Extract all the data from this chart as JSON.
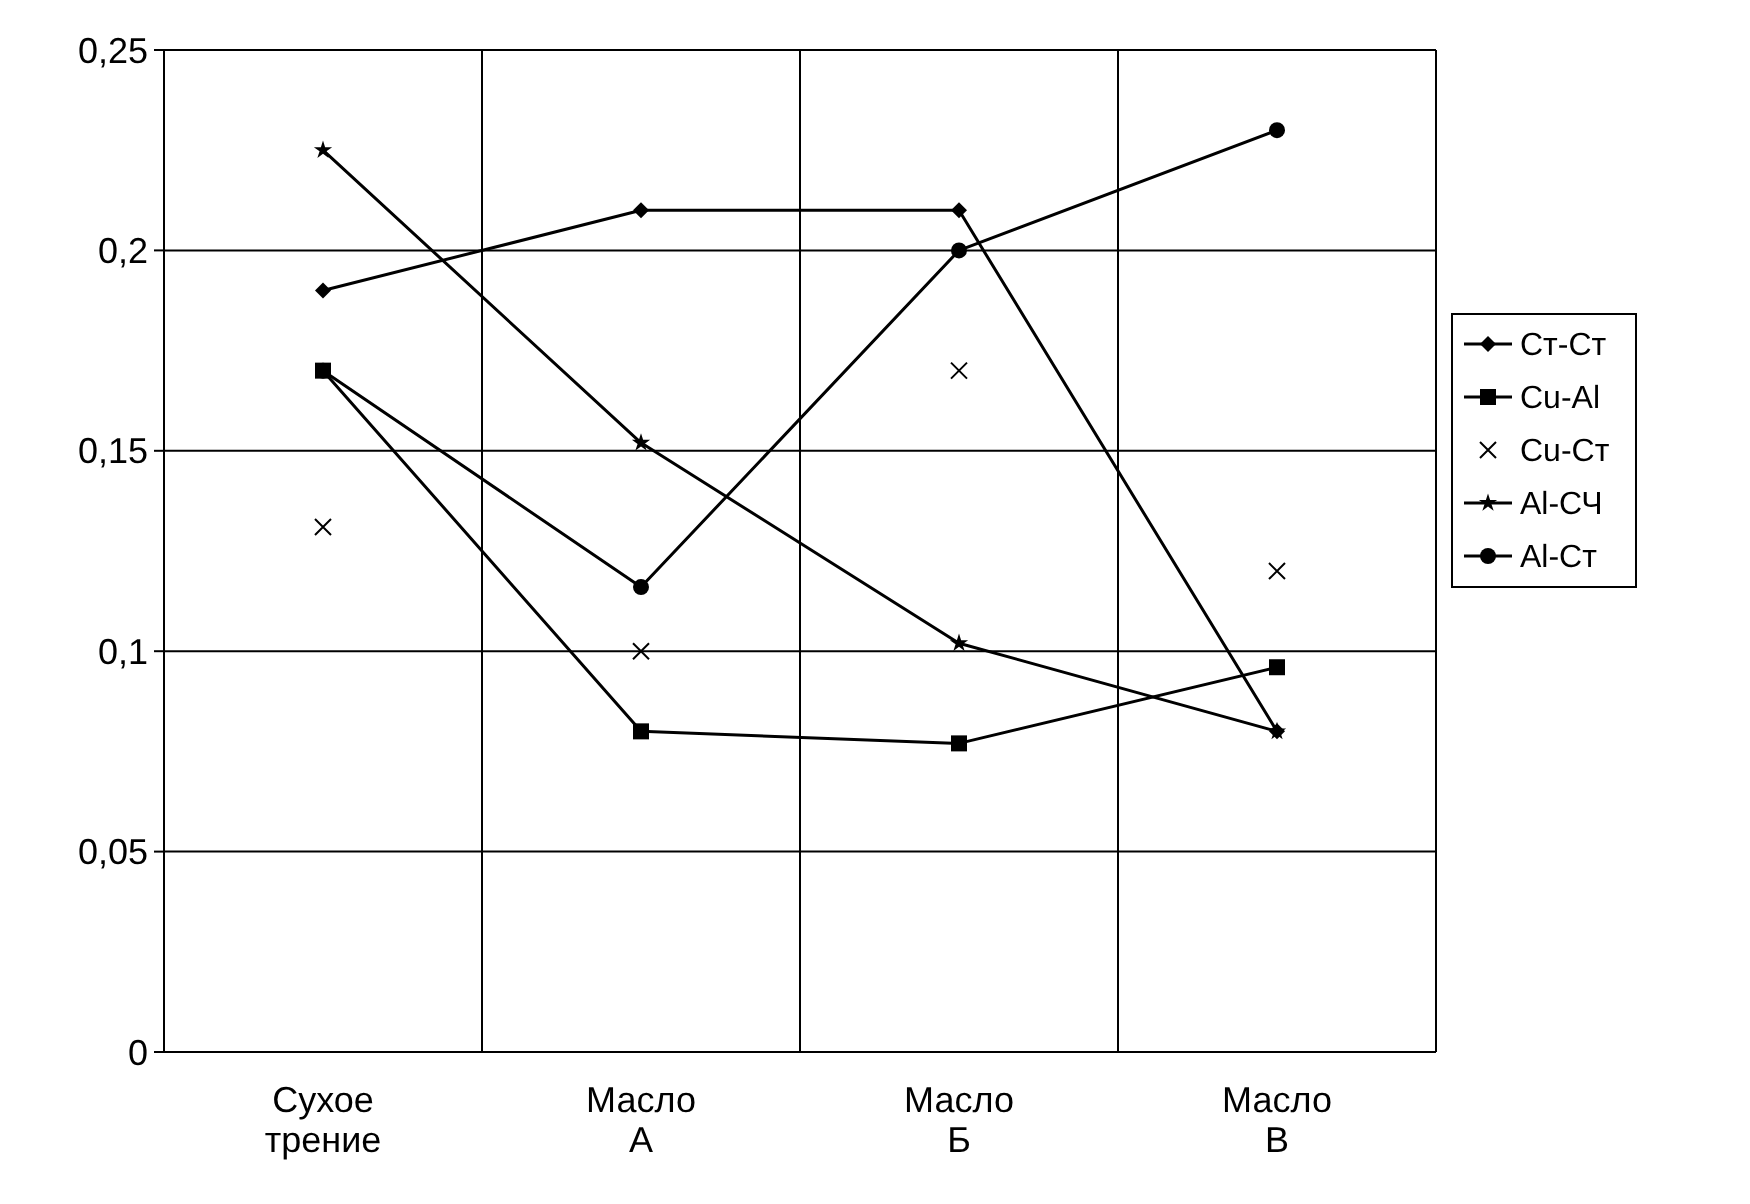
{
  "chart_data": {
    "type": "line",
    "categories": [
      "Сухое трение",
      "Масло А",
      "Масло Б",
      "Масло В"
    ],
    "ylim": [
      0,
      0.25
    ],
    "yticks": [
      {
        "value": 0,
        "label": "0"
      },
      {
        "value": 0.05,
        "label": "0,05"
      },
      {
        "value": 0.1,
        "label": "0,1"
      },
      {
        "value": 0.15,
        "label": "0,15"
      },
      {
        "value": 0.2,
        "label": "0,2"
      },
      {
        "value": 0.25,
        "label": "0,25"
      }
    ],
    "grid": true,
    "legend": "right",
    "series": [
      {
        "name": "Ст-Ст",
        "color": "#000000",
        "marker": "diamond",
        "values": [
          0.19,
          0.21,
          0.21,
          0.08
        ]
      },
      {
        "name": "Cu-Al",
        "color": "#000000",
        "marker": "square",
        "values": [
          0.17,
          0.08,
          0.077,
          0.096
        ]
      },
      {
        "name": "Cu-Ст",
        "color": "#000000",
        "type": "scatter",
        "marker": "cross",
        "values": [
          0.131,
          0.1,
          0.17,
          0.12
        ]
      },
      {
        "name": "Al-СЧ",
        "color": "#000000",
        "marker": "star",
        "values": [
          0.225,
          0.152,
          0.102,
          0.08
        ]
      },
      {
        "name": "Al-Ст",
        "color": "#000000",
        "marker": "circle",
        "values": [
          0.17,
          0.116,
          0.2,
          0.23
        ]
      }
    ]
  }
}
